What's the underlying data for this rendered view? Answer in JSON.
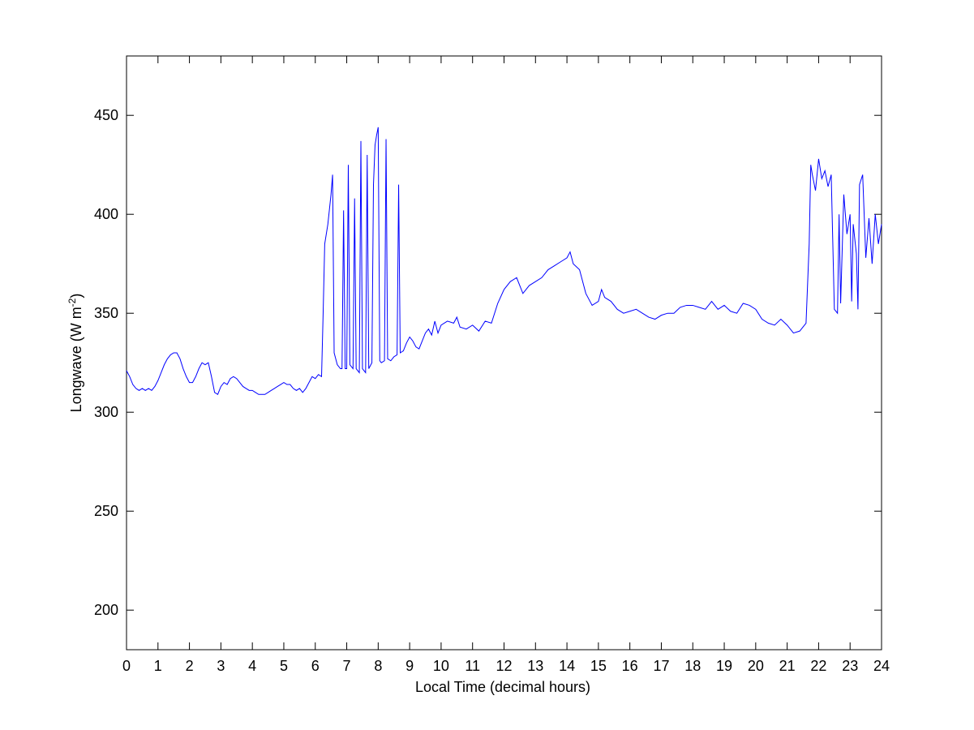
{
  "chart_data": {
    "type": "line",
    "xlabel": "Local Time (decimal hours)",
    "ylabel": [
      "Longwave (W m",
      "-2",
      ")"
    ],
    "color": "#0000ff",
    "xlim": [
      0,
      24
    ],
    "ylim": [
      180,
      480
    ],
    "xticks": [
      0,
      1,
      2,
      3,
      4,
      5,
      6,
      7,
      8,
      9,
      10,
      11,
      12,
      13,
      14,
      15,
      16,
      17,
      18,
      19,
      20,
      21,
      22,
      23,
      24
    ],
    "yticks": [
      200,
      250,
      300,
      350,
      400,
      450
    ],
    "x": [
      0,
      0.1,
      0.2,
      0.3,
      0.4,
      0.5,
      0.6,
      0.7,
      0.8,
      0.9,
      1.0,
      1.1,
      1.2,
      1.3,
      1.4,
      1.5,
      1.6,
      1.7,
      1.8,
      1.9,
      2.0,
      2.1,
      2.2,
      2.3,
      2.4,
      2.5,
      2.6,
      2.7,
      2.8,
      2.9,
      3.0,
      3.1,
      3.2,
      3.3,
      3.4,
      3.5,
      3.6,
      3.7,
      3.8,
      3.9,
      4.0,
      4.1,
      4.2,
      4.3,
      4.4,
      4.5,
      4.6,
      4.7,
      4.8,
      4.9,
      5.0,
      5.1,
      5.2,
      5.3,
      5.4,
      5.5,
      5.6,
      5.7,
      5.8,
      5.9,
      6.0,
      6.1,
      6.2,
      6.25,
      6.3,
      6.4,
      6.5,
      6.55,
      6.6,
      6.7,
      6.8,
      6.85,
      6.9,
      6.95,
      7.0,
      7.05,
      7.1,
      7.2,
      7.25,
      7.3,
      7.4,
      7.45,
      7.5,
      7.6,
      7.65,
      7.7,
      7.8,
      7.85,
      7.9,
      7.95,
      8.0,
      8.05,
      8.1,
      8.2,
      8.25,
      8.3,
      8.4,
      8.5,
      8.6,
      8.65,
      8.7,
      8.8,
      8.9,
      9.0,
      9.1,
      9.2,
      9.3,
      9.4,
      9.5,
      9.6,
      9.7,
      9.8,
      9.9,
      10.0,
      10.2,
      10.4,
      10.5,
      10.6,
      10.8,
      11.0,
      11.2,
      11.4,
      11.6,
      11.8,
      12.0,
      12.2,
      12.4,
      12.6,
      12.8,
      13.0,
      13.2,
      13.4,
      13.6,
      13.8,
      14.0,
      14.1,
      14.2,
      14.4,
      14.6,
      14.8,
      15.0,
      15.1,
      15.2,
      15.4,
      15.6,
      15.8,
      16.0,
      16.2,
      16.4,
      16.6,
      16.8,
      17.0,
      17.2,
      17.4,
      17.6,
      17.8,
      18.0,
      18.2,
      18.4,
      18.6,
      18.8,
      19.0,
      19.2,
      19.4,
      19.6,
      19.8,
      20.0,
      20.2,
      20.4,
      20.6,
      20.8,
      21.0,
      21.2,
      21.4,
      21.6,
      21.7,
      21.75,
      21.8,
      21.9,
      22.0,
      22.1,
      22.2,
      22.3,
      22.4,
      22.5,
      22.6,
      22.65,
      22.7,
      22.8,
      22.9,
      23.0,
      23.05,
      23.1,
      23.2,
      23.25,
      23.3,
      23.4,
      23.5,
      23.6,
      23.7,
      23.8,
      23.9,
      24.0
    ],
    "values": [
      321,
      318,
      314,
      312,
      311,
      312,
      311,
      312,
      311,
      313,
      316,
      320,
      324,
      327,
      329,
      330,
      330,
      327,
      322,
      318,
      315,
      315,
      318,
      322,
      325,
      324,
      325,
      318,
      310,
      309,
      313,
      315,
      314,
      317,
      318,
      317,
      315,
      313,
      312,
      311,
      311,
      310,
      309,
      309,
      309,
      310,
      311,
      312,
      313,
      314,
      315,
      314,
      314,
      312,
      311,
      312,
      310,
      312,
      315,
      318,
      317,
      319,
      318,
      350,
      385,
      395,
      410,
      420,
      330,
      324,
      322,
      322,
      402,
      322,
      322,
      425,
      324,
      322,
      408,
      322,
      320,
      437,
      322,
      320,
      430,
      322,
      325,
      415,
      435,
      440,
      444,
      326,
      325,
      326,
      438,
      327,
      326,
      328,
      329,
      415,
      330,
      331,
      335,
      338,
      336,
      333,
      332,
      336,
      340,
      342,
      339,
      346,
      340,
      344,
      346,
      345,
      348,
      343,
      342,
      344,
      341,
      346,
      345,
      355,
      362,
      366,
      368,
      360,
      364,
      366,
      368,
      372,
      374,
      376,
      378,
      381,
      375,
      372,
      360,
      354,
      356,
      362,
      358,
      356,
      352,
      350,
      351,
      352,
      350,
      348,
      347,
      349,
      350,
      350,
      353,
      354,
      354,
      353,
      352,
      356,
      352,
      354,
      351,
      350,
      355,
      354,
      352,
      347,
      345,
      344,
      347,
      344,
      340,
      341,
      345,
      385,
      425,
      420,
      412,
      428,
      418,
      422,
      414,
      420,
      352,
      350,
      400,
      355,
      410,
      390,
      400,
      356,
      395,
      380,
      352,
      415,
      420,
      378,
      398,
      375,
      400,
      385,
      395
    ]
  }
}
